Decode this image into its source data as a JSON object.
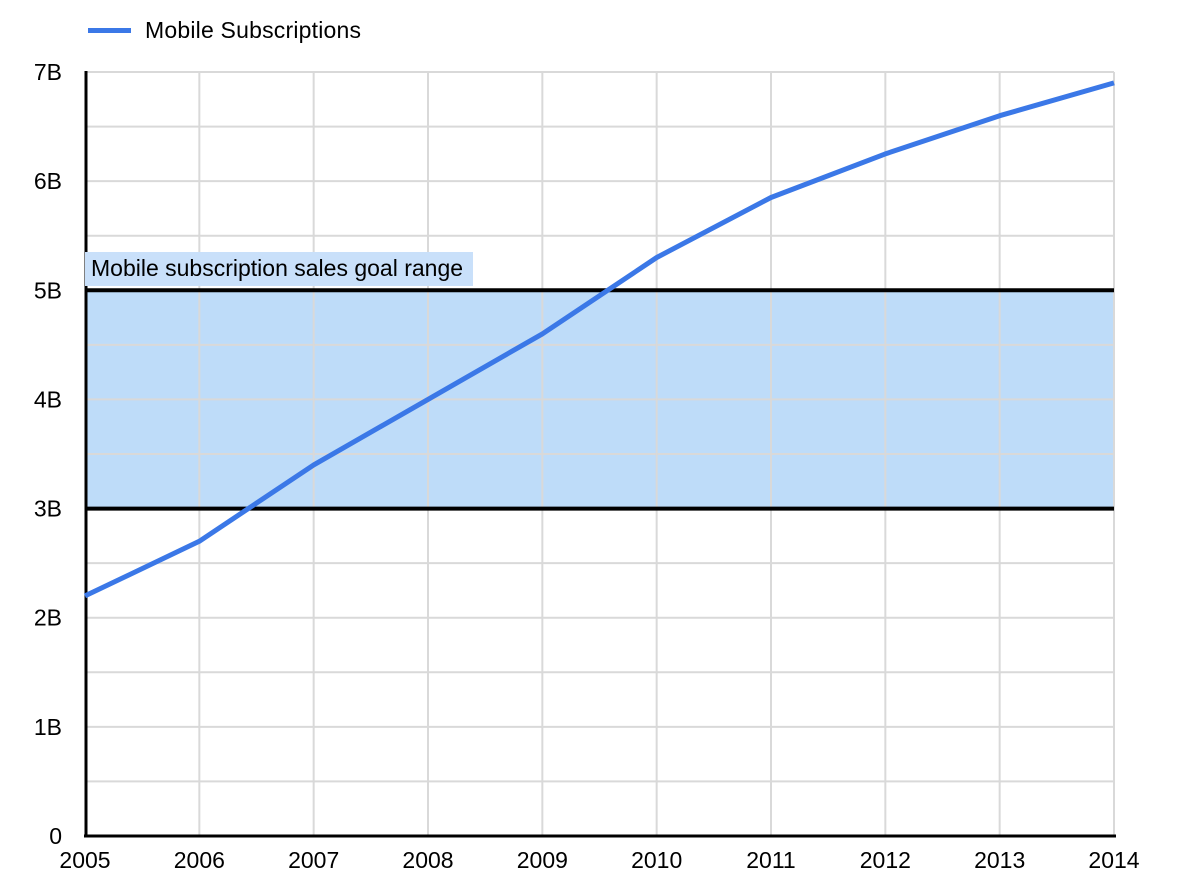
{
  "legend": {
    "items": [
      {
        "label": "Mobile Subscriptions"
      }
    ]
  },
  "chart_data": {
    "type": "line",
    "title": "",
    "categories": [
      "2005",
      "2006",
      "2007",
      "2008",
      "2009",
      "2010",
      "2011",
      "2012",
      "2013",
      "2014"
    ],
    "series": [
      {
        "name": "Mobile Subscriptions",
        "color": "#3b78e7",
        "values": [
          2.2,
          2.7,
          3.4,
          4.0,
          4.6,
          5.3,
          5.85,
          6.25,
          6.6,
          6.9
        ]
      }
    ],
    "unit": "billions of subscriptions",
    "xlabel": "",
    "ylabel": "",
    "ylim": [
      0,
      7
    ],
    "y_major_step": 1,
    "y_minor_step": 0.5,
    "y_tick_labels": [
      "0",
      "1B",
      "2B",
      "3B",
      "4B",
      "5B",
      "6B",
      "7B"
    ],
    "grid": true,
    "legend_position": "top-left",
    "annotation_band": {
      "label": "Mobile subscription sales goal range",
      "from": 3,
      "to": 5,
      "fill": "#bedcf9",
      "label_bg": "#c9e0fa",
      "border_color": "#000000"
    }
  },
  "colors": {
    "background": "#ffffff",
    "gridline": "#d9d9d9",
    "axis": "#000000",
    "tick_text": "#000000",
    "legend_text": "#000000"
  }
}
